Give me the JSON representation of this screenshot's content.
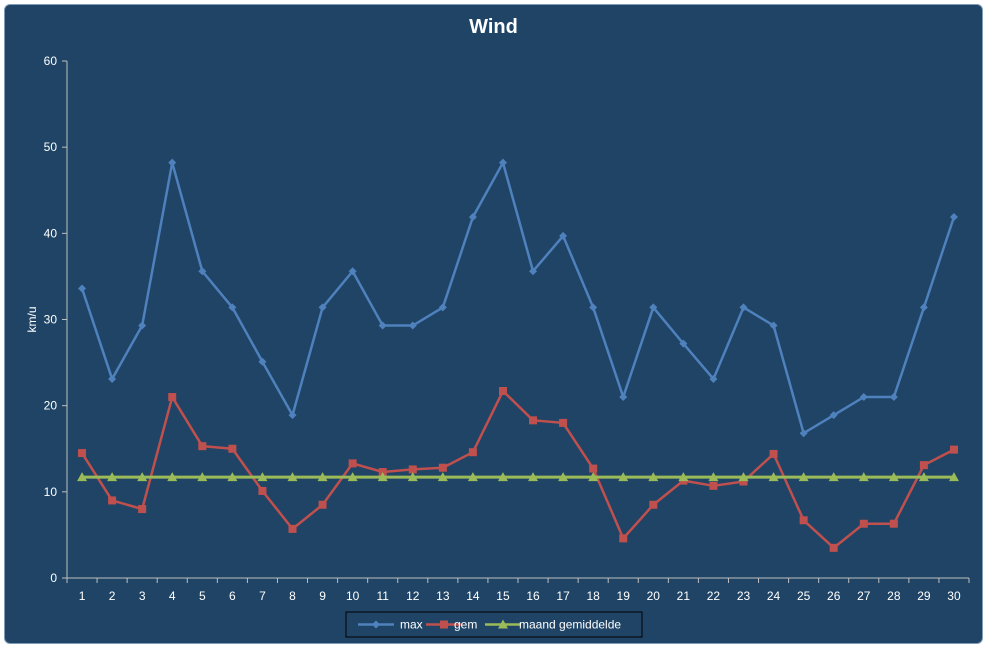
{
  "chart_data": {
    "type": "line",
    "title": "Wind",
    "xlabel": "",
    "ylabel": "km/u",
    "ylim": [
      0,
      60
    ],
    "yticks": [
      0,
      10,
      20,
      30,
      40,
      50,
      60
    ],
    "categories": [
      "1",
      "2",
      "3",
      "4",
      "5",
      "6",
      "7",
      "8",
      "9",
      "10",
      "11",
      "12",
      "13",
      "14",
      "15",
      "16",
      "17",
      "18",
      "19",
      "20",
      "21",
      "22",
      "23",
      "24",
      "25",
      "26",
      "27",
      "28",
      "29",
      "30"
    ],
    "grid": false,
    "legend": "bottom",
    "series": [
      {
        "name": "max",
        "color": "#4f81bd",
        "marker": "diamond",
        "values": [
          33.6,
          23.1,
          29.3,
          48.2,
          35.6,
          31.4,
          25.1,
          18.9,
          31.4,
          35.6,
          29.3,
          29.3,
          31.4,
          41.9,
          48.2,
          35.6,
          39.7,
          31.4,
          21.0,
          31.4,
          27.2,
          23.1,
          31.4,
          29.3,
          16.8,
          18.9,
          21.0,
          21.0,
          31.4,
          41.9
        ]
      },
      {
        "name": "gem",
        "color": "#c0504d",
        "marker": "square",
        "values": [
          14.5,
          9.0,
          8.0,
          21.0,
          15.3,
          15.0,
          10.1,
          5.7,
          8.5,
          13.3,
          12.3,
          12.6,
          12.8,
          14.6,
          21.7,
          18.3,
          18.0,
          12.7,
          4.6,
          8.5,
          11.3,
          10.7,
          11.2,
          14.4,
          6.7,
          3.5,
          6.3,
          6.3,
          13.1,
          14.9
        ]
      },
      {
        "name": "maand gemiddelde",
        "color": "#9bbb59",
        "marker": "triangle",
        "values": [
          11.7,
          11.7,
          11.7,
          11.7,
          11.7,
          11.7,
          11.7,
          11.7,
          11.7,
          11.7,
          11.7,
          11.7,
          11.7,
          11.7,
          11.7,
          11.7,
          11.7,
          11.7,
          11.7,
          11.7,
          11.7,
          11.7,
          11.7,
          11.7,
          11.7,
          11.7,
          11.7,
          11.7,
          11.7,
          11.7
        ]
      }
    ]
  }
}
